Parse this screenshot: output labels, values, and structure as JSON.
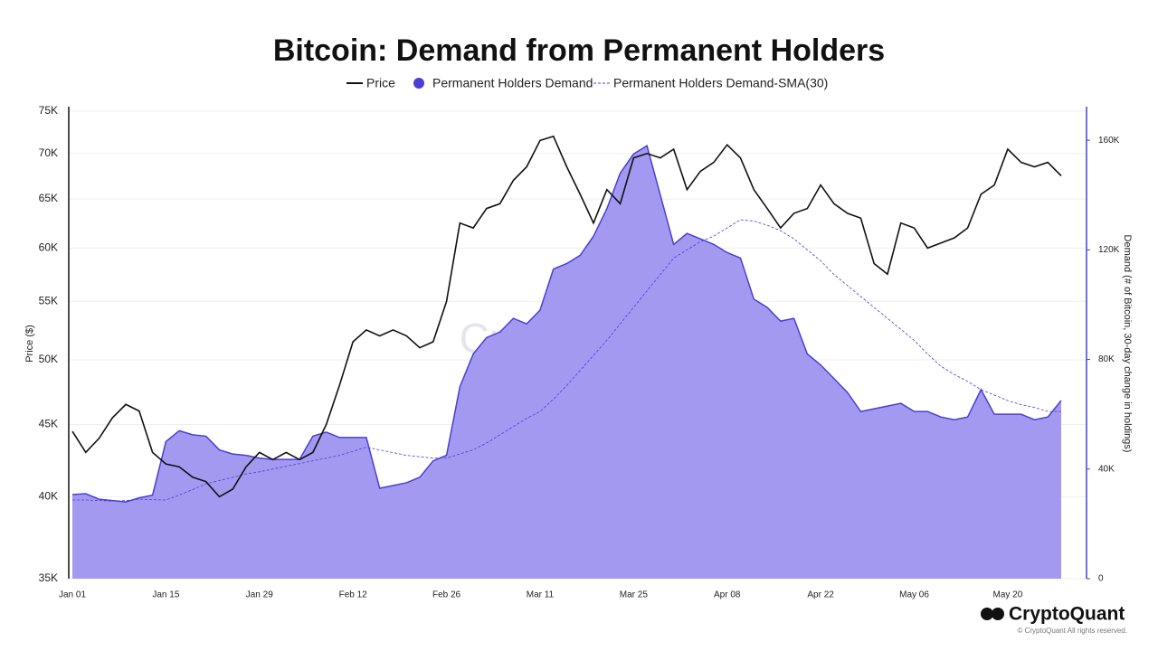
{
  "chart_data": {
    "type": "line",
    "title": "Bitcoin: Demand from Permanent Holders",
    "y_label": "Price ($)",
    "y2_label": "Demand (# of Bitcoin, 30-day change in holdings)",
    "watermark": "CryptoQuant",
    "brand": "CryptoQuant",
    "copyright": "© CryptoQuant All rights reserved.",
    "categories": [
      "Jan 01",
      null,
      null,
      null,
      null,
      null,
      null,
      "Jan 15",
      null,
      null,
      null,
      null,
      null,
      null,
      "Jan 29",
      null,
      null,
      null,
      null,
      null,
      null,
      "Feb 12",
      null,
      null,
      null,
      null,
      null,
      null,
      "Feb 26",
      null,
      null,
      null,
      null,
      null,
      null,
      "Mar 11",
      null,
      null,
      null,
      null,
      null,
      null,
      "Mar 25",
      null,
      null,
      null,
      null,
      null,
      null,
      "Apr 08",
      null,
      null,
      null,
      null,
      null,
      null,
      "Apr 22",
      null,
      null,
      null,
      null,
      null,
      null,
      "May 06",
      null,
      null,
      null,
      null,
      null,
      null,
      "May 20",
      null,
      null,
      null,
      null
    ],
    "series": [
      {
        "name": "Price",
        "kind": "line",
        "color": "#111111",
        "axis": "y",
        "values": [
          44500,
          43000,
          44000,
          45500,
          46500,
          46000,
          43000,
          42200,
          42000,
          41300,
          41000,
          40000,
          40500,
          42000,
          43000,
          42500,
          43000,
          42500,
          43000,
          45000,
          48000,
          51500,
          52500,
          52000,
          52500,
          52000,
          51000,
          51500,
          55000,
          62500,
          62000,
          64000,
          64500,
          67000,
          68500,
          71500,
          72000,
          68500,
          65500,
          62500,
          66000,
          64500,
          69500,
          70000,
          69500,
          70500,
          66000,
          68000,
          69000,
          71000,
          69500,
          66000,
          64000,
          62000,
          63500,
          64000,
          66500,
          64500,
          63500,
          63000,
          58500,
          57500,
          62500,
          62000,
          60000,
          60500,
          61000,
          62000,
          65500,
          66500,
          70500,
          69000,
          68500,
          69000,
          67500
        ]
      },
      {
        "name": "Permanent Holders Demand",
        "kind": "area",
        "color": "#4b3fd4",
        "fill": "#a499f0",
        "axis": "y2",
        "values": [
          30700,
          31000,
          29000,
          28500,
          28000,
          29500,
          30500,
          50000,
          54000,
          52500,
          52000,
          47000,
          45500,
          45000,
          44000,
          43500,
          43500,
          43500,
          52000,
          53500,
          51500,
          51500,
          51500,
          33000,
          34000,
          35000,
          37000,
          43000,
          45000,
          70000,
          82000,
          88000,
          90000,
          95000,
          93000,
          98000,
          113000,
          115000,
          118000,
          125000,
          135000,
          148000,
          155000,
          158000,
          140000,
          122000,
          126000,
          124000,
          122000,
          119000,
          117000,
          102000,
          99000,
          94000,
          95000,
          82000,
          78000,
          73000,
          68000,
          61000,
          62000,
          63000,
          64000,
          61000,
          61000,
          59000,
          58000,
          59000,
          69000,
          60000,
          60000,
          60000,
          58000,
          59000,
          65000
        ]
      },
      {
        "name": "Permanent Holders Demand-SMA(30)",
        "kind": "dashed",
        "color": "#4b3fd4",
        "axis": "y2",
        "values": [
          28700,
          28700,
          28500,
          28300,
          28500,
          29000,
          28800,
          28700,
          30500,
          32500,
          34600,
          35800,
          37000,
          38200,
          39000,
          40000,
          41000,
          42000,
          43000,
          44000,
          45000,
          46500,
          48000,
          47000,
          46000,
          45000,
          44500,
          44000,
          44000,
          45500,
          47000,
          49500,
          52500,
          55500,
          58500,
          61000,
          65500,
          70500,
          76000,
          81500,
          87000,
          93000,
          99000,
          105000,
          111000,
          117000,
          120000,
          123000,
          125000,
          128000,
          131000,
          130500,
          129000,
          127000,
          124000,
          120000,
          116000,
          111000,
          107000,
          103000,
          99000,
          95000,
          91000,
          87000,
          82000,
          77500,
          74500,
          72000,
          69000,
          67000,
          65000,
          63500,
          62500,
          61000,
          61000
        ]
      }
    ],
    "ylim": [
      35000,
      75000
    ],
    "ylog": true,
    "yticks": [
      {
        "value": 35000,
        "label": "35K"
      },
      {
        "value": 40000,
        "label": "40K"
      },
      {
        "value": 45000,
        "label": "45K"
      },
      {
        "value": 50000,
        "label": "50K"
      },
      {
        "value": 55000,
        "label": "55K"
      },
      {
        "value": 60000,
        "label": "60K"
      },
      {
        "value": 65000,
        "label": "65K"
      },
      {
        "value": 70000,
        "label": "70K"
      },
      {
        "value": 75000,
        "label": "75K"
      }
    ],
    "y2lim": [
      0,
      170600
    ],
    "y2ticks": [
      0,
      {
        "value": 40000,
        "label": "40K"
      },
      {
        "value": 80000,
        "label": "80K"
      },
      {
        "value": 120000,
        "label": "120K"
      },
      {
        "value": 160000,
        "label": "160K"
      }
    ],
    "grid": true,
    "legend": "top"
  }
}
